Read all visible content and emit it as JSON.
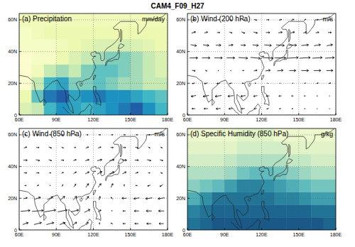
{
  "title": "CAM4_F09_H27",
  "chart_data": [
    {
      "type": "heatmap",
      "title": "(a) Precipitation",
      "units": "mm/day",
      "xlim": [
        60,
        180
      ],
      "ylim": [
        0,
        64
      ],
      "xticks": [
        {
          "value": 60,
          "label": "60E"
        },
        {
          "value": 90,
          "label": "90E"
        },
        {
          "value": 120,
          "label": "120E"
        },
        {
          "value": 150,
          "label": "150E"
        },
        {
          "value": 180,
          "label": "180E"
        }
      ],
      "yticks": [
        0,
        {
          "value": 20,
          "label": "20N"
        },
        {
          "value": 40,
          "label": "40N"
        },
        {
          "value": 60,
          "label": "60N"
        }
      ],
      "grid": true,
      "lon": [
        65,
        75,
        85,
        95,
        105,
        115,
        125,
        135,
        145,
        155,
        165,
        175
      ],
      "lat": [
        4,
        12,
        20,
        28,
        36,
        44,
        52,
        60
      ],
      "cells": [
        [
          3,
          4,
          8,
          10,
          9,
          8,
          9,
          10,
          11,
          12,
          10,
          8
        ],
        [
          2,
          7,
          11,
          12,
          9,
          10,
          11,
          10,
          10,
          9,
          8,
          7
        ],
        [
          0.5,
          4,
          8,
          9,
          6,
          6,
          7,
          6,
          5,
          5,
          4,
          4
        ],
        [
          0.5,
          1.5,
          4,
          5,
          4,
          6,
          7,
          7,
          6,
          5,
          4,
          3
        ],
        [
          0.5,
          1,
          1,
          2,
          3,
          4,
          5,
          6,
          6,
          5,
          4,
          3
        ],
        [
          1,
          1,
          1,
          1.5,
          2,
          2.5,
          3,
          3,
          3.5,
          3,
          2.5,
          2
        ],
        [
          1,
          1.5,
          2,
          2,
          2,
          2,
          2,
          2,
          2,
          2,
          2,
          2
        ],
        [
          1.5,
          1.5,
          1.5,
          1.5,
          1.5,
          1.5,
          1.5,
          1.5,
          1.5,
          1.5,
          1.5,
          1.5
        ]
      ],
      "clim": [
        0,
        14
      ],
      "colors": [
        "#ffffd9",
        "#edf8b1",
        "#c7e9b4",
        "#7fcdbb",
        "#41b6c4",
        "#1d91c0",
        "#225ea8",
        "#0c2c84"
      ]
    },
    {
      "type": "vector",
      "title": "(b) Wind (200 hPa)",
      "units": "m/s",
      "xlim": [
        60,
        180
      ],
      "ylim": [
        0,
        64
      ],
      "xticks": [
        {
          "value": 60,
          "label": "60E"
        },
        {
          "value": 90,
          "label": "90E"
        },
        {
          "value": 120,
          "label": "120E"
        },
        {
          "value": 150,
          "label": "150E"
        },
        {
          "value": 180,
          "label": "180E"
        }
      ],
      "yticks": [
        0,
        {
          "value": 20,
          "label": "20N"
        },
        {
          "value": 40,
          "label": "40N"
        },
        {
          "value": 60,
          "label": "60N"
        }
      ],
      "grid": true,
      "lon": [
        65,
        75,
        85,
        95,
        105,
        115,
        125,
        135,
        145,
        155,
        165,
        175
      ],
      "lat": [
        4,
        12,
        20,
        28,
        36,
        44,
        52,
        60
      ],
      "u": [
        [
          -10,
          -12,
          -14,
          -12,
          -10,
          -8,
          -6,
          -5,
          -4,
          -3,
          -2,
          -2
        ],
        [
          -15,
          -18,
          -20,
          -18,
          -15,
          -12,
          -10,
          -8,
          -6,
          -4,
          -3,
          -2
        ],
        [
          -8,
          -10,
          -10,
          -8,
          -6,
          -4,
          -2,
          0,
          2,
          4,
          6,
          6
        ],
        [
          10,
          5,
          0,
          2,
          5,
          10,
          15,
          18,
          20,
          22,
          22,
          20
        ],
        [
          25,
          25,
          25,
          25,
          28,
          30,
          32,
          35,
          35,
          33,
          30,
          28
        ],
        [
          18,
          18,
          16,
          14,
          15,
          18,
          22,
          25,
          25,
          22,
          20,
          18
        ],
        [
          12,
          10,
          8,
          8,
          10,
          12,
          12,
          12,
          12,
          10,
          10,
          10
        ],
        [
          8,
          6,
          5,
          5,
          6,
          8,
          8,
          8,
          8,
          6,
          6,
          6
        ]
      ],
      "v": [
        [
          0,
          0,
          -1,
          -1,
          -1,
          -2,
          -2,
          -1,
          -1,
          0,
          0,
          0
        ],
        [
          -3,
          -3,
          -3,
          -2,
          -2,
          -2,
          -1,
          -1,
          0,
          0,
          0,
          0
        ],
        [
          -2,
          -2,
          -2,
          -2,
          0,
          0,
          2,
          2,
          2,
          2,
          2,
          2
        ],
        [
          -2,
          -3,
          -3,
          -2,
          0,
          2,
          2,
          2,
          0,
          0,
          0,
          0
        ],
        [
          0,
          0,
          0,
          0,
          -2,
          -3,
          -2,
          0,
          2,
          2,
          2,
          2
        ],
        [
          -3,
          -2,
          0,
          2,
          0,
          -2,
          -2,
          -2,
          0,
          2,
          3,
          3
        ],
        [
          4,
          3,
          0,
          -3,
          -4,
          -3,
          0,
          2,
          3,
          3,
          2,
          0
        ],
        [
          3,
          2,
          0,
          -2,
          -3,
          -2,
          0,
          2,
          3,
          3,
          2,
          0
        ]
      ],
      "color": "#000000"
    },
    {
      "type": "vector",
      "title": "(c) Wind (850 hPa)",
      "units": "m/s",
      "xlim": [
        60,
        180
      ],
      "ylim": [
        0,
        64
      ],
      "xticks": [
        {
          "value": 60,
          "label": "60E"
        },
        {
          "value": 90,
          "label": "90E"
        },
        {
          "value": 120,
          "label": "120E"
        },
        {
          "value": 150,
          "label": "150E"
        },
        {
          "value": 180,
          "label": "180E"
        }
      ],
      "yticks": [
        0,
        {
          "value": 20,
          "label": "20N"
        },
        {
          "value": 40,
          "label": "40N"
        },
        {
          "value": 60,
          "label": "60N"
        }
      ],
      "grid": true,
      "lon": [
        65,
        75,
        85,
        95,
        105,
        115,
        125,
        135,
        145,
        155,
        165,
        175
      ],
      "lat": [
        4,
        12,
        20,
        28,
        36,
        44,
        52,
        60
      ],
      "u": [
        [
          6,
          8,
          8,
          6,
          4,
          2,
          0,
          -2,
          -3,
          -4,
          -5,
          -5
        ],
        [
          10,
          12,
          12,
          10,
          8,
          6,
          3,
          0,
          -3,
          -5,
          -6,
          -6
        ],
        [
          4,
          6,
          6,
          5,
          4,
          3,
          1,
          -2,
          -5,
          -6,
          -7,
          -7
        ],
        [
          2,
          2,
          0,
          1,
          2,
          3,
          3,
          2,
          0,
          -2,
          -3,
          -3
        ],
        [
          3,
          3,
          2,
          2,
          3,
          4,
          5,
          5,
          4,
          3,
          2,
          2
        ],
        [
          4,
          4,
          3,
          3,
          3,
          4,
          5,
          5,
          5,
          4,
          4,
          3
        ],
        [
          3,
          3,
          3,
          2,
          2,
          3,
          3,
          3,
          3,
          3,
          2,
          2
        ],
        [
          2,
          2,
          2,
          2,
          2,
          2,
          2,
          2,
          2,
          2,
          2,
          2
        ]
      ],
      "v": [
        [
          2,
          2,
          2,
          2,
          3,
          3,
          2,
          1,
          0,
          0,
          0,
          0
        ],
        [
          1,
          1,
          2,
          2,
          2,
          3,
          2,
          1,
          0,
          0,
          0,
          0
        ],
        [
          1,
          2,
          3,
          4,
          4,
          4,
          4,
          2,
          0,
          -1,
          -1,
          -1
        ],
        [
          0,
          1,
          1,
          2,
          3,
          4,
          4,
          4,
          2,
          0,
          -1,
          -2
        ],
        [
          0,
          0,
          0,
          1,
          2,
          2,
          3,
          2,
          2,
          1,
          0,
          -1
        ],
        [
          0,
          -1,
          -1,
          0,
          1,
          1,
          1,
          1,
          0,
          0,
          -1,
          -1
        ],
        [
          1,
          0,
          -1,
          -1,
          0,
          1,
          1,
          0,
          0,
          -1,
          -1,
          -1
        ],
        [
          0,
          0,
          0,
          0,
          0,
          0,
          0,
          0,
          0,
          0,
          0,
          0
        ]
      ],
      "color": "#000000"
    },
    {
      "type": "heatmap",
      "title": "(d) Specific Humidity (850 hPa)",
      "units": "g/kg",
      "xlim": [
        60,
        180
      ],
      "ylim": [
        0,
        64
      ],
      "xticks": [
        {
          "value": 60,
          "label": "60E"
        },
        {
          "value": 90,
          "label": "90E"
        },
        {
          "value": 120,
          "label": "120E"
        },
        {
          "value": 150,
          "label": "150E"
        },
        {
          "value": 180,
          "label": "180E"
        }
      ],
      "yticks": [
        0,
        {
          "value": 20,
          "label": "20N"
        },
        {
          "value": 40,
          "label": "40N"
        },
        {
          "value": 60,
          "label": "60N"
        }
      ],
      "grid": true,
      "lon": [
        65,
        75,
        85,
        95,
        105,
        115,
        125,
        135,
        145,
        155,
        165,
        175
      ],
      "lat": [
        4,
        12,
        20,
        28,
        36,
        44,
        52,
        60
      ],
      "cells": [
        [
          15,
          16,
          17,
          17,
          17,
          17,
          17,
          17,
          17,
          17,
          17,
          16
        ],
        [
          14,
          15,
          16,
          16,
          16,
          16,
          16,
          16,
          16,
          16,
          15,
          15
        ],
        [
          11,
          13,
          15,
          15,
          15,
          15,
          15,
          14,
          14,
          13,
          12,
          12
        ],
        [
          8,
          9,
          10,
          12,
          14,
          14,
          13,
          12,
          11,
          10,
          9,
          9
        ],
        [
          6,
          6,
          6,
          7,
          9,
          10,
          10,
          9,
          8,
          7,
          6,
          6
        ],
        [
          4,
          4,
          4,
          5,
          6,
          6,
          6,
          6,
          5,
          5,
          4,
          4
        ],
        [
          3,
          3,
          3,
          3,
          4,
          4,
          4,
          4,
          3,
          3,
          3,
          3
        ],
        [
          2,
          2,
          2,
          2,
          3,
          3,
          3,
          2,
          2,
          2,
          2,
          2
        ]
      ],
      "clim": [
        0,
        18
      ],
      "colors": [
        "#ffffe0",
        "#e8f5c8",
        "#c2e6c4",
        "#8fd1c0",
        "#5bb8bd",
        "#3293a8",
        "#1f6e94",
        "#164a80"
      ]
    }
  ]
}
